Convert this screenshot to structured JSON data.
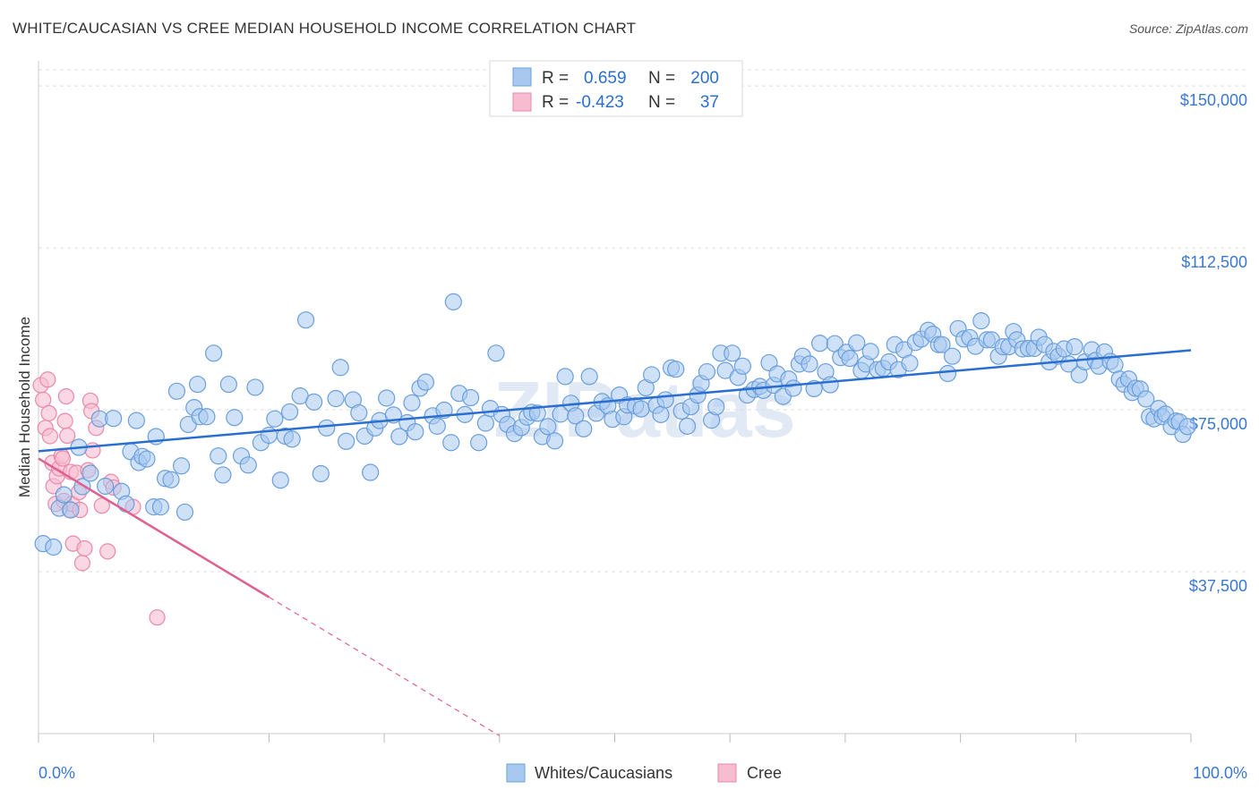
{
  "title": "WHITE/CAUCASIAN VS CREE MEDIAN HOUSEHOLD INCOME CORRELATION CHART",
  "source": "Source: ZipAtlas.com",
  "watermark": "ZIPatlas",
  "colors": {
    "blue_fill": "#a8c8f0",
    "blue_stroke": "#6a9fdc",
    "blue_line": "#2a6fd0",
    "pink_fill": "#f8bcd0",
    "pink_stroke": "#e88aa8",
    "pink_line": "#e06090",
    "tick_text": "#3a78d0",
    "grid": "#dddddd"
  },
  "legend": {
    "rows": [
      {
        "r_label": "R =",
        "r_value": "0.659",
        "n_label": "N =",
        "n_value": "200"
      },
      {
        "r_label": "R =",
        "r_value": "-0.423",
        "n_label": "N =",
        "n_value": "37"
      }
    ]
  },
  "chart_data": {
    "type": "scatter",
    "title": "WHITE/CAUCASIAN VS CREE MEDIAN HOUSEHOLD INCOME CORRELATION CHART",
    "xlabel": "",
    "ylabel": "Median Household Income",
    "x_tick_labels": [
      "0.0%",
      "100.0%"
    ],
    "y_tick_labels": [
      "$37,500",
      "$75,000",
      "$112,500",
      "$150,000"
    ],
    "y_ticks": [
      37500,
      75000,
      112500,
      150000
    ],
    "xlim": [
      0,
      100
    ],
    "ylim": [
      0,
      153750
    ],
    "grid": true,
    "legend_position": "top-center",
    "series": [
      {
        "name": "Whites/Caucasians",
        "color": "#a8c8f0",
        "trend": {
          "x0": 0,
          "y0": 65400,
          "x1": 100,
          "y1": 88800
        },
        "points": [
          [
            0.4,
            44000
          ],
          [
            1.3,
            43200
          ],
          [
            1.8,
            52200
          ],
          [
            2.2,
            55300
          ],
          [
            2.8,
            51800
          ],
          [
            3.5,
            66300
          ],
          [
            3.8,
            57200
          ],
          [
            4.5,
            60300
          ],
          [
            5.3,
            72900
          ],
          [
            5.8,
            57300
          ],
          [
            6.5,
            73000
          ],
          [
            7.2,
            56100
          ],
          [
            7.6,
            53200
          ],
          [
            8.0,
            65300
          ],
          [
            8.5,
            72500
          ],
          [
            8.7,
            62800
          ],
          [
            9.0,
            64200
          ],
          [
            9.4,
            63600
          ],
          [
            10.0,
            52500
          ],
          [
            10.2,
            68800
          ],
          [
            10.6,
            52500
          ],
          [
            11.0,
            59100
          ],
          [
            11.5,
            58800
          ],
          [
            12.0,
            79300
          ],
          [
            12.4,
            62000
          ],
          [
            12.7,
            51300
          ],
          [
            13.0,
            71600
          ],
          [
            13.5,
            75500
          ],
          [
            13.8,
            80900
          ],
          [
            14.0,
            73400
          ],
          [
            14.6,
            73400
          ],
          [
            15.2,
            88100
          ],
          [
            15.6,
            64300
          ],
          [
            16.0,
            59900
          ],
          [
            16.5,
            80900
          ],
          [
            17.0,
            73200
          ],
          [
            17.6,
            64300
          ],
          [
            18.2,
            62200
          ],
          [
            18.8,
            80200
          ],
          [
            19.3,
            67400
          ],
          [
            20.0,
            69100
          ],
          [
            20.5,
            72900
          ],
          [
            21.0,
            58700
          ],
          [
            21.4,
            68900
          ],
          [
            21.8,
            74500
          ],
          [
            22.0,
            68200
          ],
          [
            22.7,
            78200
          ],
          [
            23.2,
            95800
          ],
          [
            23.9,
            76800
          ],
          [
            24.5,
            60200
          ],
          [
            25.0,
            70800
          ],
          [
            25.8,
            77600
          ],
          [
            26.2,
            84800
          ],
          [
            26.7,
            67700
          ],
          [
            27.3,
            77300
          ],
          [
            27.8,
            74300
          ],
          [
            28.3,
            68900
          ],
          [
            28.8,
            60500
          ],
          [
            29.2,
            70800
          ],
          [
            29.6,
            72500
          ],
          [
            30.2,
            77700
          ],
          [
            30.8,
            73800
          ],
          [
            31.3,
            68800
          ],
          [
            32.0,
            72000
          ],
          [
            32.4,
            76600
          ],
          [
            32.7,
            69900
          ],
          [
            33.1,
            80000
          ],
          [
            33.6,
            81400
          ],
          [
            34.2,
            73600
          ],
          [
            34.6,
            71200
          ],
          [
            35.2,
            74900
          ],
          [
            35.8,
            67400
          ],
          [
            36.0,
            100000
          ],
          [
            36.5,
            78800
          ],
          [
            37.0,
            73900
          ],
          [
            37.5,
            77800
          ],
          [
            38.2,
            67400
          ],
          [
            38.8,
            71900
          ],
          [
            39.2,
            75300
          ],
          [
            39.7,
            88100
          ],
          [
            40.2,
            73900
          ],
          [
            40.7,
            71600
          ],
          [
            41.3,
            69500
          ],
          [
            41.9,
            70900
          ],
          [
            42.4,
            73300
          ],
          [
            42.8,
            74400
          ],
          [
            43.3,
            74200
          ],
          [
            43.7,
            68800
          ],
          [
            44.2,
            71100
          ],
          [
            44.8,
            67800
          ],
          [
            45.3,
            74000
          ],
          [
            45.7,
            82700
          ],
          [
            46.2,
            76500
          ],
          [
            46.6,
            73600
          ],
          [
            47.3,
            70600
          ],
          [
            47.8,
            82700
          ],
          [
            48.4,
            74200
          ],
          [
            48.9,
            76900
          ],
          [
            49.4,
            75900
          ],
          [
            49.8,
            72800
          ],
          [
            50.4,
            78400
          ],
          [
            50.8,
            73400
          ],
          [
            51.1,
            76100
          ],
          [
            51.8,
            75900
          ],
          [
            52.3,
            75200
          ],
          [
            52.7,
            80100
          ],
          [
            53.2,
            83100
          ],
          [
            53.6,
            76000
          ],
          [
            54.0,
            73900
          ],
          [
            54.4,
            77300
          ],
          [
            54.9,
            84700
          ],
          [
            55.3,
            84400
          ],
          [
            55.8,
            74700
          ],
          [
            56.3,
            71200
          ],
          [
            56.6,
            75700
          ],
          [
            57.2,
            78400
          ],
          [
            57.5,
            81100
          ],
          [
            58.0,
            83800
          ],
          [
            58.4,
            72600
          ],
          [
            58.8,
            75700
          ],
          [
            59.2,
            88100
          ],
          [
            59.6,
            84100
          ],
          [
            60.2,
            88100
          ],
          [
            60.7,
            82500
          ],
          [
            61.1,
            85100
          ],
          [
            61.5,
            78400
          ],
          [
            62.1,
            79700
          ],
          [
            62.6,
            80400
          ],
          [
            62.9,
            79500
          ],
          [
            63.4,
            85900
          ],
          [
            63.8,
            80700
          ],
          [
            64.1,
            83300
          ],
          [
            64.6,
            78100
          ],
          [
            65.1,
            82100
          ],
          [
            65.5,
            80000
          ],
          [
            66.0,
            85600
          ],
          [
            66.3,
            87400
          ],
          [
            66.9,
            85600
          ],
          [
            67.3,
            79900
          ],
          [
            67.8,
            90400
          ],
          [
            68.3,
            83800
          ],
          [
            68.7,
            80800
          ],
          [
            69.1,
            90300
          ],
          [
            69.6,
            87100
          ],
          [
            70.1,
            88300
          ],
          [
            70.4,
            86900
          ],
          [
            71.0,
            90500
          ],
          [
            71.4,
            84100
          ],
          [
            71.8,
            85600
          ],
          [
            72.2,
            88500
          ],
          [
            72.8,
            84300
          ],
          [
            73.3,
            84600
          ],
          [
            73.8,
            86100
          ],
          [
            74.3,
            90100
          ],
          [
            74.6,
            84300
          ],
          [
            75.1,
            88900
          ],
          [
            75.6,
            85800
          ],
          [
            76.1,
            90600
          ],
          [
            76.6,
            91400
          ],
          [
            77.2,
            93400
          ],
          [
            77.6,
            92500
          ],
          [
            78.1,
            90100
          ],
          [
            78.4,
            90100
          ],
          [
            78.9,
            83400
          ],
          [
            79.3,
            87400
          ],
          [
            79.8,
            93800
          ],
          [
            80.3,
            91400
          ],
          [
            80.8,
            91700
          ],
          [
            81.3,
            89700
          ],
          [
            81.8,
            95600
          ],
          [
            82.3,
            91200
          ],
          [
            82.7,
            91200
          ],
          [
            83.3,
            87400
          ],
          [
            83.7,
            89600
          ],
          [
            84.2,
            89600
          ],
          [
            84.6,
            93100
          ],
          [
            84.9,
            91200
          ],
          [
            85.4,
            89100
          ],
          [
            85.9,
            89200
          ],
          [
            86.4,
            89200
          ],
          [
            86.8,
            91800
          ],
          [
            87.3,
            90100
          ],
          [
            87.7,
            86100
          ],
          [
            88.1,
            88500
          ],
          [
            88.5,
            87400
          ],
          [
            89.0,
            89100
          ],
          [
            89.4,
            85600
          ],
          [
            89.9,
            89600
          ],
          [
            90.3,
            83100
          ],
          [
            90.8,
            86100
          ],
          [
            91.4,
            88900
          ],
          [
            91.7,
            86400
          ],
          [
            92.0,
            85100
          ],
          [
            92.5,
            88400
          ],
          [
            93.0,
            86200
          ],
          [
            93.4,
            85400
          ],
          [
            93.8,
            82100
          ],
          [
            94.2,
            80900
          ],
          [
            94.6,
            82100
          ],
          [
            94.9,
            79000
          ],
          [
            95.2,
            80000
          ],
          [
            95.6,
            79800
          ],
          [
            96.1,
            77500
          ],
          [
            96.4,
            73400
          ],
          [
            96.8,
            72900
          ],
          [
            97.2,
            75300
          ],
          [
            97.5,
            73400
          ],
          [
            97.8,
            74000
          ],
          [
            98.3,
            71100
          ],
          [
            98.7,
            72400
          ],
          [
            99.0,
            72200
          ],
          [
            99.3,
            69300
          ],
          [
            99.7,
            71100
          ]
        ]
      },
      {
        "name": "Cree",
        "color": "#f8bcd0",
        "trend": {
          "x0": 0,
          "y0": 63700,
          "x1": 20,
          "y1": 31600,
          "dash_x1": 40,
          "dash_y1": -500
        },
        "points": [
          [
            0.2,
            80700
          ],
          [
            0.4,
            77300
          ],
          [
            0.6,
            70800
          ],
          [
            0.8,
            82000
          ],
          [
            0.9,
            74200
          ],
          [
            1.0,
            68900
          ],
          [
            1.2,
            62700
          ],
          [
            1.3,
            57300
          ],
          [
            1.5,
            53200
          ],
          [
            1.6,
            59600
          ],
          [
            1.8,
            61400
          ],
          [
            2.0,
            64300
          ],
          [
            2.1,
            63700
          ],
          [
            2.2,
            53900
          ],
          [
            2.3,
            72400
          ],
          [
            2.4,
            78100
          ],
          [
            2.5,
            69000
          ],
          [
            2.7,
            51800
          ],
          [
            2.8,
            60600
          ],
          [
            2.9,
            53200
          ],
          [
            3.0,
            44000
          ],
          [
            3.3,
            60400
          ],
          [
            3.5,
            55900
          ],
          [
            3.6,
            51800
          ],
          [
            3.8,
            39500
          ],
          [
            4.0,
            42900
          ],
          [
            4.3,
            61000
          ],
          [
            4.5,
            77100
          ],
          [
            4.6,
            74700
          ],
          [
            4.7,
            65600
          ],
          [
            5.0,
            70800
          ],
          [
            5.5,
            52800
          ],
          [
            6.0,
            42200
          ],
          [
            6.3,
            58300
          ],
          [
            6.5,
            57000
          ],
          [
            8.2,
            52500
          ],
          [
            10.3,
            26900
          ]
        ]
      }
    ]
  },
  "bottom_legend": {
    "items": [
      {
        "label": "Whites/Caucasians"
      },
      {
        "label": "Cree"
      }
    ]
  }
}
